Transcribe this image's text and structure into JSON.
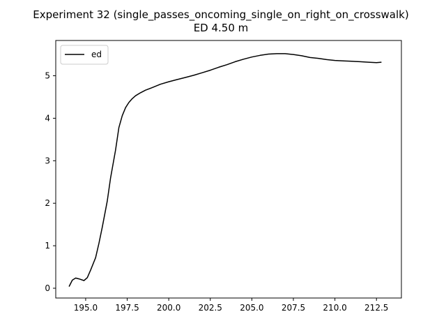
{
  "chart_data": {
    "type": "line",
    "title": "Experiment 32 (single_passes_oncoming_single_on_right_on_crosswalk)",
    "subtitle": "ED 4.50 m",
    "xlabel": "",
    "ylabel": "",
    "xlim": [
      93.2,
      214.0
    ],
    "ylim": [
      -0.23,
      5.83
    ],
    "xlim_data": [
      193.2,
      214.0
    ],
    "xticks": [
      195.0,
      197.5,
      200.0,
      202.5,
      205.0,
      207.5,
      210.0,
      212.5
    ],
    "xtick_labels": [
      "195.0",
      "197.5",
      "200.0",
      "202.5",
      "205.0",
      "207.5",
      "210.0",
      "212.5"
    ],
    "yticks": [
      0,
      1,
      2,
      3,
      4,
      5
    ],
    "ytick_labels": [
      "0",
      "1",
      "2",
      "3",
      "4",
      "5"
    ],
    "grid": false,
    "legend_position": "top-left",
    "series": [
      {
        "name": "ed",
        "color": "#000000",
        "x": [
          194.0,
          194.2,
          194.4,
          194.6,
          194.9,
          195.1,
          195.3,
          195.6,
          195.8,
          196.0,
          196.3,
          196.5,
          196.8,
          197.0,
          197.2,
          197.4,
          197.6,
          197.8,
          198.0,
          198.3,
          198.6,
          199.0,
          199.5,
          200.0,
          200.5,
          201.0,
          201.5,
          202.0,
          202.5,
          203.0,
          203.5,
          204.0,
          204.5,
          205.0,
          205.5,
          206.0,
          206.5,
          207.0,
          207.5,
          208.0,
          208.5,
          209.0,
          209.5,
          210.0,
          210.5,
          211.0,
          211.5,
          212.0,
          212.5,
          212.8
        ],
        "y": [
          0.04,
          0.19,
          0.24,
          0.22,
          0.18,
          0.25,
          0.43,
          0.72,
          1.06,
          1.44,
          2.05,
          2.6,
          3.25,
          3.78,
          4.06,
          4.25,
          4.37,
          4.46,
          4.53,
          4.6,
          4.66,
          4.72,
          4.8,
          4.86,
          4.91,
          4.96,
          5.01,
          5.07,
          5.13,
          5.2,
          5.26,
          5.33,
          5.39,
          5.44,
          5.48,
          5.51,
          5.52,
          5.52,
          5.5,
          5.47,
          5.43,
          5.41,
          5.38,
          5.36,
          5.35,
          5.34,
          5.33,
          5.32,
          5.31,
          5.32
        ]
      }
    ]
  }
}
